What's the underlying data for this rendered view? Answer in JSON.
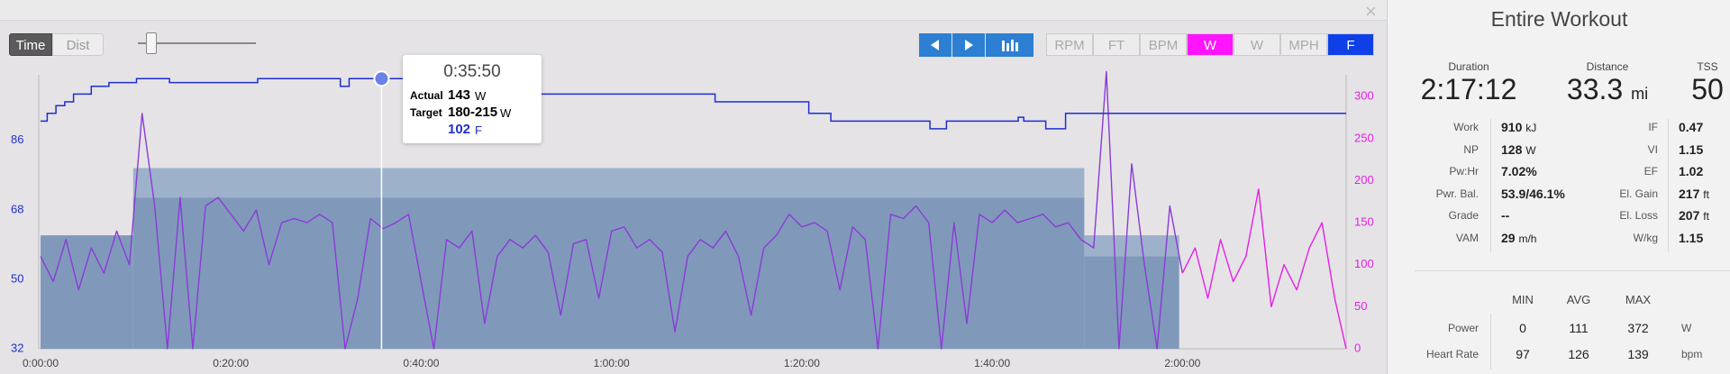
{
  "toolbar": {
    "modes": [
      "Time",
      "Dist"
    ],
    "units": [
      "RPM",
      "FT",
      "BPM",
      "W",
      "W",
      "MPH",
      "F"
    ]
  },
  "tooltip": {
    "time": "0:35:50",
    "actual_label": "Actual",
    "actual": "143",
    "actual_unit": "W",
    "target_label": "Target",
    "target": "180-215",
    "target_unit": "W",
    "temp": "102",
    "temp_unit": "F"
  },
  "chart_data": {
    "type": "line",
    "xlim": [
      0,
      8232
    ],
    "xticks": [
      {
        "value": 0,
        "label": "0:00:00"
      },
      {
        "value": 1200,
        "label": "0:20:00"
      },
      {
        "value": 2400,
        "label": "0:40:00"
      },
      {
        "value": 3600,
        "label": "1:00:00"
      },
      {
        "value": 4800,
        "label": "1:20:00"
      },
      {
        "value": 6000,
        "label": "1:40:00"
      },
      {
        "value": 7200,
        "label": "2:00:00"
      }
    ],
    "ylim": [
      32,
      103
    ],
    "yticks": [
      32,
      50,
      68,
      86
    ],
    "y2lim": [
      0,
      326
    ],
    "y2ticks": [
      0,
      50,
      100,
      150,
      200,
      250,
      300
    ],
    "cursor": 2150,
    "target_color": "#9db1cb",
    "target_low_color": "#8099bb",
    "targets": [
      {
        "start": 0,
        "end": 584,
        "low": 135,
        "high": 135
      },
      {
        "start": 584,
        "end": 6581,
        "low": 180,
        "high": 215
      },
      {
        "start": 6581,
        "end": 7179,
        "low": 110,
        "high": 135
      }
    ],
    "series": [
      {
        "axis": "y2",
        "color": "#e51fe5",
        "in_target_color": "#8a3bd6",
        "x": [
          0,
          80,
          160,
          240,
          320,
          400,
          480,
          560,
          640,
          720,
          800,
          880,
          960,
          1040,
          1120,
          1200,
          1280,
          1360,
          1440,
          1520,
          1600,
          1680,
          1760,
          1840,
          1920,
          2000,
          2080,
          2160,
          2240,
          2320,
          2400,
          2480,
          2560,
          2640,
          2720,
          2800,
          2880,
          2960,
          3040,
          3120,
          3200,
          3280,
          3360,
          3440,
          3520,
          3600,
          3680,
          3760,
          3840,
          3920,
          4000,
          4080,
          4160,
          4240,
          4320,
          4400,
          4480,
          4560,
          4640,
          4720,
          4800,
          4880,
          4960,
          5040,
          5120,
          5200,
          5280,
          5360,
          5440,
          5520,
          5600,
          5680,
          5760,
          5840,
          5920,
          6000,
          6080,
          6160,
          6240,
          6320,
          6400,
          6480,
          6560,
          6640,
          6720,
          6800,
          6880,
          6960,
          7040,
          7120,
          7200,
          7280,
          7360,
          7440,
          7520,
          7600,
          7680,
          7760,
          7840,
          7920,
          8000,
          8080,
          8160,
          8232
        ],
        "values": [
          110,
          80,
          130,
          70,
          120,
          90,
          140,
          100,
          280,
          170,
          0,
          180,
          0,
          170,
          180,
          160,
          140,
          165,
          100,
          150,
          155,
          150,
          160,
          150,
          0,
          60,
          155,
          143,
          150,
          160,
          80,
          0,
          130,
          120,
          140,
          30,
          110,
          130,
          120,
          135,
          115,
          40,
          125,
          130,
          60,
          140,
          145,
          120,
          130,
          115,
          20,
          110,
          130,
          120,
          140,
          110,
          40,
          120,
          135,
          160,
          145,
          150,
          140,
          70,
          145,
          130,
          0,
          160,
          155,
          170,
          150,
          0,
          150,
          30,
          160,
          150,
          165,
          150,
          155,
          160,
          145,
          150,
          130,
          120,
          330,
          0,
          220,
          100,
          0,
          170,
          90,
          120,
          60,
          130,
          80,
          110,
          190,
          50,
          100,
          70,
          120,
          150,
          60,
          0
        ]
      },
      {
        "axis": "y",
        "color": "#1f2fd0",
        "step": true,
        "x": [
          0,
          42,
          97,
          153,
          208,
          320,
          431,
          605,
          813,
          1369,
          1890,
          1946,
          3141,
          4253,
          4844,
          4983,
          5608,
          5712,
          6164,
          6199,
          6338,
          6463,
          8232
        ],
        "values": [
          91,
          93,
          95,
          96,
          98,
          100,
          101,
          102,
          101,
          102,
          100,
          102,
          98,
          96,
          93,
          91,
          89,
          91,
          92,
          91,
          89,
          93,
          93
        ]
      }
    ]
  },
  "summary": {
    "title": "Entire Workout",
    "headline": [
      {
        "label": "Duration",
        "value": "2:17:12"
      },
      {
        "label": "Distance",
        "value": "33.3",
        "unit": "mi"
      },
      {
        "label": "TSS",
        "value": "50"
      }
    ],
    "metrics_left": [
      {
        "label": "Work",
        "value": "910",
        "unit": "kJ"
      },
      {
        "label": "NP",
        "value": "128",
        "unit": "W"
      },
      {
        "label": "Pw:Hr",
        "value": "7.02%"
      },
      {
        "label": "Pwr. Bal.",
        "value": "53.9/46.1%"
      },
      {
        "label": "Grade",
        "value": "--"
      },
      {
        "label": "VAM",
        "value": "29",
        "unit": "m/h"
      }
    ],
    "metrics_right": [
      {
        "label": "IF",
        "value": "0.47"
      },
      {
        "label": "VI",
        "value": "1.15"
      },
      {
        "label": "EF",
        "value": "1.02"
      },
      {
        "label": "El. Gain",
        "value": "217",
        "unit": "ft"
      },
      {
        "label": "El. Loss",
        "value": "207",
        "unit": "ft"
      },
      {
        "label": "W/kg",
        "value": "1.15"
      }
    ],
    "stats": {
      "columns": [
        "MIN",
        "AVG",
        "MAX"
      ],
      "rows": [
        {
          "label": "Power",
          "values": [
            "0",
            "111",
            "372"
          ],
          "unit": "W"
        },
        {
          "label": "Heart Rate",
          "values": [
            "97",
            "126",
            "139"
          ],
          "unit": "bpm"
        }
      ]
    }
  }
}
